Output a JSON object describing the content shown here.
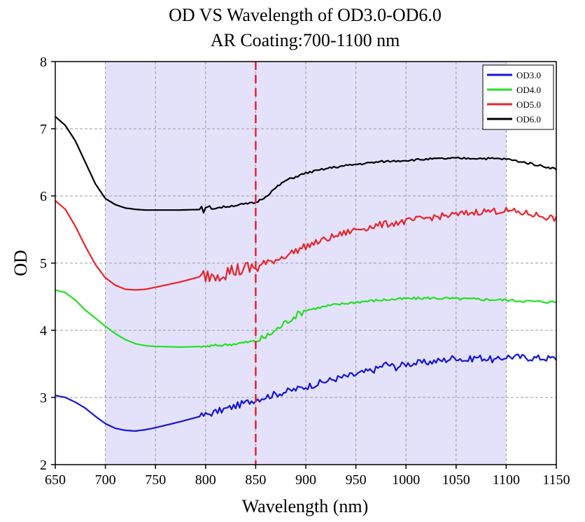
{
  "chart_data": {
    "type": "line",
    "title": "OD VS Wavelength of OD3.0-OD6.0",
    "subtitle": "AR Coating:700-1100 nm",
    "xlabel": "Wavelength (nm)",
    "ylabel": "OD",
    "xlim": [
      650,
      1150
    ],
    "ylim": [
      2,
      8
    ],
    "xticks": [
      "650",
      "700",
      "750",
      "800",
      "850",
      "900",
      "950",
      "1000",
      "1050",
      "1100",
      "1150"
    ],
    "yticks": [
      "2",
      "3",
      "4",
      "5",
      "6",
      "7",
      "8"
    ],
    "grid": true,
    "legend_position": "top-right",
    "shaded_region": {
      "x": [
        700,
        1100
      ],
      "color": "#e4e1fb"
    },
    "vertical_marker": {
      "x": 850,
      "color": "#e8242a",
      "style": "dashed"
    },
    "series": [
      {
        "name": "OD3.0",
        "color": "#1414d6",
        "x": [
          650,
          660,
          670,
          680,
          690,
          700,
          710,
          720,
          730,
          740,
          750,
          775,
          800,
          825,
          850,
          870,
          890,
          910,
          930,
          950,
          970,
          980,
          990,
          1000,
          1020,
          1040,
          1050,
          1060,
          1070,
          1080,
          1090,
          1100,
          1125,
          1150
        ],
        "values": [
          3.03,
          3.0,
          2.93,
          2.84,
          2.72,
          2.61,
          2.54,
          2.51,
          2.5,
          2.52,
          2.55,
          2.64,
          2.74,
          2.85,
          2.97,
          3.05,
          3.12,
          3.2,
          3.28,
          3.34,
          3.42,
          3.5,
          3.45,
          3.5,
          3.52,
          3.56,
          3.6,
          3.55,
          3.6,
          3.58,
          3.55,
          3.61,
          3.59,
          3.58
        ],
        "noise": 0.05
      },
      {
        "name": "OD4.0",
        "color": "#22e022",
        "x": [
          650,
          660,
          670,
          680,
          690,
          700,
          710,
          720,
          730,
          740,
          750,
          775,
          800,
          825,
          850,
          860,
          870,
          880,
          890,
          900,
          925,
          950,
          975,
          1000,
          1025,
          1050,
          1075,
          1100,
          1125,
          1150
        ],
        "values": [
          4.6,
          4.56,
          4.45,
          4.3,
          4.18,
          4.06,
          3.95,
          3.86,
          3.8,
          3.77,
          3.76,
          3.75,
          3.76,
          3.79,
          3.84,
          3.9,
          4.0,
          4.12,
          4.22,
          4.3,
          4.37,
          4.42,
          4.45,
          4.47,
          4.48,
          4.47,
          4.46,
          4.45,
          4.43,
          4.42
        ],
        "noise": 0.02
      },
      {
        "name": "OD5.0",
        "color": "#e8242a",
        "x": [
          650,
          660,
          670,
          680,
          690,
          700,
          710,
          720,
          730,
          740,
          750,
          775,
          800,
          825,
          850,
          875,
          900,
          925,
          950,
          975,
          1000,
          1025,
          1050,
          1075,
          1100,
          1125,
          1150
        ],
        "values": [
          5.93,
          5.8,
          5.55,
          5.25,
          4.98,
          4.78,
          4.67,
          4.61,
          4.6,
          4.61,
          4.64,
          4.72,
          4.82,
          4.88,
          4.93,
          5.08,
          5.25,
          5.38,
          5.5,
          5.57,
          5.62,
          5.68,
          5.72,
          5.77,
          5.78,
          5.73,
          5.66
        ],
        "noise": 0.05
      },
      {
        "name": "OD6.0",
        "color": "#000000",
        "x": [
          650,
          660,
          670,
          680,
          690,
          700,
          710,
          720,
          730,
          740,
          750,
          775,
          800,
          825,
          850,
          860,
          870,
          880,
          900,
          925,
          950,
          975,
          1000,
          1025,
          1050,
          1075,
          1100,
          1125,
          1150
        ],
        "values": [
          7.18,
          7.05,
          6.82,
          6.5,
          6.18,
          5.96,
          5.87,
          5.82,
          5.8,
          5.79,
          5.79,
          5.79,
          5.8,
          5.85,
          5.9,
          5.99,
          6.12,
          6.23,
          6.34,
          6.42,
          6.47,
          6.51,
          6.53,
          6.55,
          6.56,
          6.56,
          6.55,
          6.48,
          6.4
        ],
        "noise": 0.015
      }
    ]
  }
}
